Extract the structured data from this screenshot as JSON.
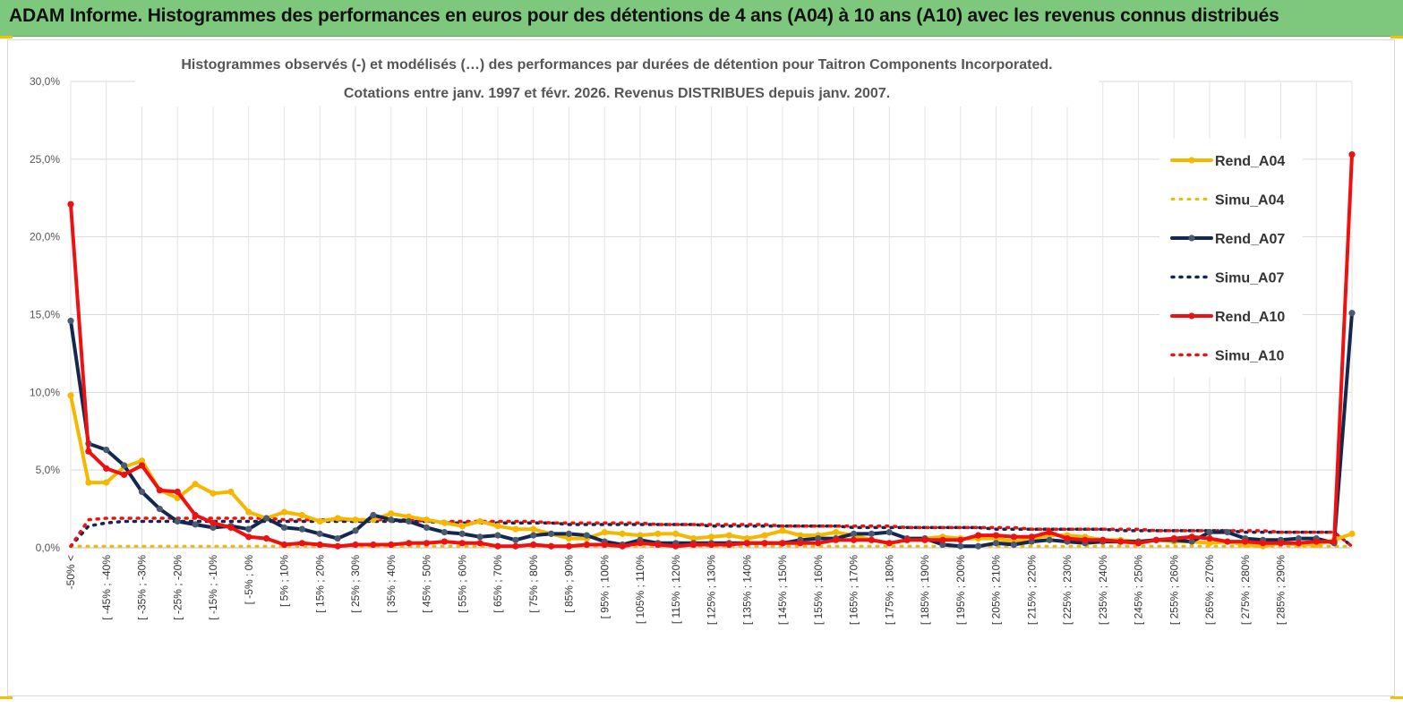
{
  "header": {
    "title": "ADAM Informe. Histogrammes des performances en euros pour des détentions de 4 ans (A04) à 10 ans (A10) avec les revenus connus distribués"
  },
  "colors": {
    "header_bg": "#7ec87e",
    "corner_accent": "#f5c000",
    "A04": "#f5b800",
    "A07": "#14284f",
    "A10": "#ee1111",
    "A07_marker": "#4a5a70"
  },
  "chart_data": {
    "type": "line",
    "title_lines": [
      "Histogrammes observés (-) et modélisés (…) des performances par durées de détention pour Taitron Components Incorporated.",
      "Cotations entre janv. 1997 et févr. 2026. Revenus DISTRIBUES depuis janv. 2007."
    ],
    "ylim": [
      0,
      30
    ],
    "y_ticks": [
      "0,0%",
      "5,0%",
      "10,0%",
      "15,0%",
      "20,0%",
      "25,0%",
      "30,0%"
    ],
    "grid": "vertical and horizontal",
    "legend_position": "right",
    "x_labels": [
      "-50% <",
      "[ -45% ; -40%",
      "[ -35% ; -30%",
      "[ -25% ; -20%",
      "[ -15% ; -10%",
      "[ -5% ; 0%",
      "[ 5% ; 10%",
      "[ 15% ; 20%",
      "[ 25% ; 30%",
      "[ 35% ; 40%",
      "[ 45% ; 50%",
      "[ 55% ; 60%",
      "[ 65% ; 70%",
      "[ 75% ; 80%",
      "[ 85% ; 90%",
      "[ 95% ; 100%",
      "[ 105% ; 110%",
      "[ 115% ; 120%",
      "[ 125% ; 130%",
      "[ 135% ; 140%",
      "[ 145% ; 150%",
      "[ 155% ; 160%",
      "[ 165% ; 170%",
      "[ 175% ; 180%",
      "[ 185% ; 190%",
      "[ 195% ; 200%",
      "[ 205% ; 210%",
      "[ 215% ; 220%",
      "[ 225% ; 230%",
      "[ 235% ; 240%",
      "[ 245% ; 250%",
      "[ 255% ; 260%",
      "[ 265% ; 270%",
      "[ 275% ; 280%",
      "[ 285% ; 290%"
    ],
    "series": [
      {
        "name": "Rend_A04",
        "style": "solid",
        "values": [
          9.8,
          4.2,
          4.2,
          5.2,
          5.6,
          3.7,
          3.2,
          4.1,
          3.5,
          3.6,
          2.3,
          1.9,
          2.3,
          2.1,
          1.7,
          1.9,
          1.8,
          1.8,
          2.2,
          2.0,
          1.8,
          1.6,
          1.4,
          1.7,
          1.4,
          1.2,
          1.2,
          0.9,
          0.6,
          0.6,
          1.0,
          0.9,
          0.8,
          0.9,
          0.9,
          0.6,
          0.7,
          0.8,
          0.6,
          0.8,
          1.1,
          0.8,
          0.8,
          1.0,
          0.8,
          0.5,
          0.3,
          0.5,
          0.6,
          0.7,
          0.6,
          0.6,
          0.6,
          0.4,
          0.6,
          0.8,
          0.8,
          0.7,
          0.5,
          0.5,
          0.4,
          0.5,
          0.4,
          0.4,
          0.3,
          0.4,
          0.2,
          0.1,
          0.3,
          0.2,
          0.2,
          0.5,
          0.9
        ]
      },
      {
        "name": "Simu_A04",
        "style": "dotted",
        "values": [
          0.1,
          0.1,
          0.1,
          0.1,
          0.1,
          0.1,
          0.1,
          0.1,
          0.1,
          0.1,
          0.1,
          0.1,
          0.1,
          0.1,
          0.1,
          0.1,
          0.1,
          0.1,
          0.1,
          0.1,
          0.1,
          0.1,
          0.1,
          0.1,
          0.1,
          0.1,
          0.1,
          0.1,
          0.1,
          0.1,
          0.1,
          0.1,
          0.1,
          0.1,
          0.1,
          0.1,
          0.1,
          0.1,
          0.1,
          0.1,
          0.1,
          0.1,
          0.1,
          0.1,
          0.1,
          0.1,
          0.1,
          0.1,
          0.1,
          0.1,
          0.1,
          0.1,
          0.1,
          0.1,
          0.1,
          0.1,
          0.1,
          0.1,
          0.1,
          0.1,
          0.1,
          0.1,
          0.1,
          0.1,
          0.1,
          0.1,
          0.1,
          0.1,
          0.1,
          0.1,
          0.1,
          0.1,
          0.1
        ]
      },
      {
        "name": "Rend_A07",
        "style": "solid",
        "values": [
          14.6,
          6.7,
          6.3,
          5.3,
          3.6,
          2.5,
          1.7,
          1.5,
          1.3,
          1.4,
          1.2,
          1.9,
          1.3,
          1.2,
          0.9,
          0.6,
          1.1,
          2.1,
          1.8,
          1.7,
          1.3,
          1.0,
          0.9,
          0.7,
          0.8,
          0.5,
          0.8,
          0.9,
          0.9,
          0.8,
          0.4,
          0.2,
          0.5,
          0.3,
          0.3,
          0.3,
          0.3,
          0.3,
          0.3,
          0.3,
          0.3,
          0.5,
          0.6,
          0.6,
          0.9,
          0.9,
          1.0,
          0.6,
          0.6,
          0.2,
          0.1,
          0.1,
          0.3,
          0.2,
          0.4,
          0.5,
          0.4,
          0.3,
          0.4,
          0.4,
          0.4,
          0.5,
          0.5,
          0.4,
          1.0,
          1.0,
          0.6,
          0.5,
          0.5,
          0.6,
          0.6,
          0.3,
          15.1
        ]
      },
      {
        "name": "Simu_A07",
        "style": "dotted",
        "values": [
          0.1,
          1.4,
          1.6,
          1.7,
          1.7,
          1.7,
          1.7,
          1.7,
          1.7,
          1.7,
          1.7,
          1.7,
          1.7,
          1.7,
          1.7,
          1.7,
          1.7,
          1.7,
          1.7,
          1.7,
          1.7,
          1.6,
          1.6,
          1.6,
          1.6,
          1.6,
          1.6,
          1.6,
          1.5,
          1.5,
          1.5,
          1.5,
          1.5,
          1.5,
          1.5,
          1.5,
          1.4,
          1.4,
          1.4,
          1.4,
          1.4,
          1.4,
          1.4,
          1.4,
          1.3,
          1.3,
          1.3,
          1.3,
          1.3,
          1.3,
          1.3,
          1.3,
          1.2,
          1.2,
          1.2,
          1.2,
          1.2,
          1.2,
          1.2,
          1.1,
          1.1,
          1.1,
          1.1,
          1.1,
          1.1,
          1.1,
          1.0,
          1.0,
          1.0,
          1.0,
          1.0,
          1.0,
          0.1
        ]
      },
      {
        "name": "Rend_A10",
        "style": "solid",
        "values": [
          22.1,
          6.2,
          5.1,
          4.7,
          5.3,
          3.7,
          3.6,
          2.1,
          1.6,
          1.3,
          0.7,
          0.6,
          0.2,
          0.3,
          0.2,
          0.1,
          0.2,
          0.2,
          0.2,
          0.3,
          0.3,
          0.4,
          0.3,
          0.3,
          0.1,
          0.1,
          0.2,
          0.1,
          0.1,
          0.2,
          0.2,
          0.1,
          0.3,
          0.2,
          0.1,
          0.2,
          0.2,
          0.2,
          0.3,
          0.3,
          0.3,
          0.3,
          0.3,
          0.5,
          0.5,
          0.5,
          0.3,
          0.5,
          0.5,
          0.5,
          0.5,
          0.8,
          0.8,
          0.7,
          0.7,
          1.0,
          0.6,
          0.5,
          0.5,
          0.4,
          0.3,
          0.5,
          0.6,
          0.7,
          0.6,
          0.4,
          0.4,
          0.3,
          0.3,
          0.3,
          0.4,
          0.4,
          25.3
        ]
      },
      {
        "name": "Simu_A10",
        "style": "dotted",
        "values": [
          0.1,
          1.8,
          1.9,
          1.9,
          1.9,
          1.9,
          1.9,
          1.9,
          1.9,
          1.9,
          1.9,
          1.9,
          1.8,
          1.8,
          1.8,
          1.8,
          1.8,
          1.8,
          1.8,
          1.8,
          1.7,
          1.7,
          1.7,
          1.7,
          1.7,
          1.7,
          1.7,
          1.6,
          1.6,
          1.6,
          1.6,
          1.6,
          1.6,
          1.5,
          1.5,
          1.5,
          1.5,
          1.5,
          1.5,
          1.5,
          1.4,
          1.4,
          1.4,
          1.4,
          1.4,
          1.4,
          1.4,
          1.3,
          1.3,
          1.3,
          1.3,
          1.3,
          1.3,
          1.3,
          1.2,
          1.2,
          1.2,
          1.2,
          1.2,
          1.2,
          1.2,
          1.1,
          1.1,
          1.1,
          1.1,
          1.1,
          1.1,
          1.1,
          1.0,
          1.0,
          1.0,
          1.0,
          0.1
        ]
      }
    ]
  }
}
